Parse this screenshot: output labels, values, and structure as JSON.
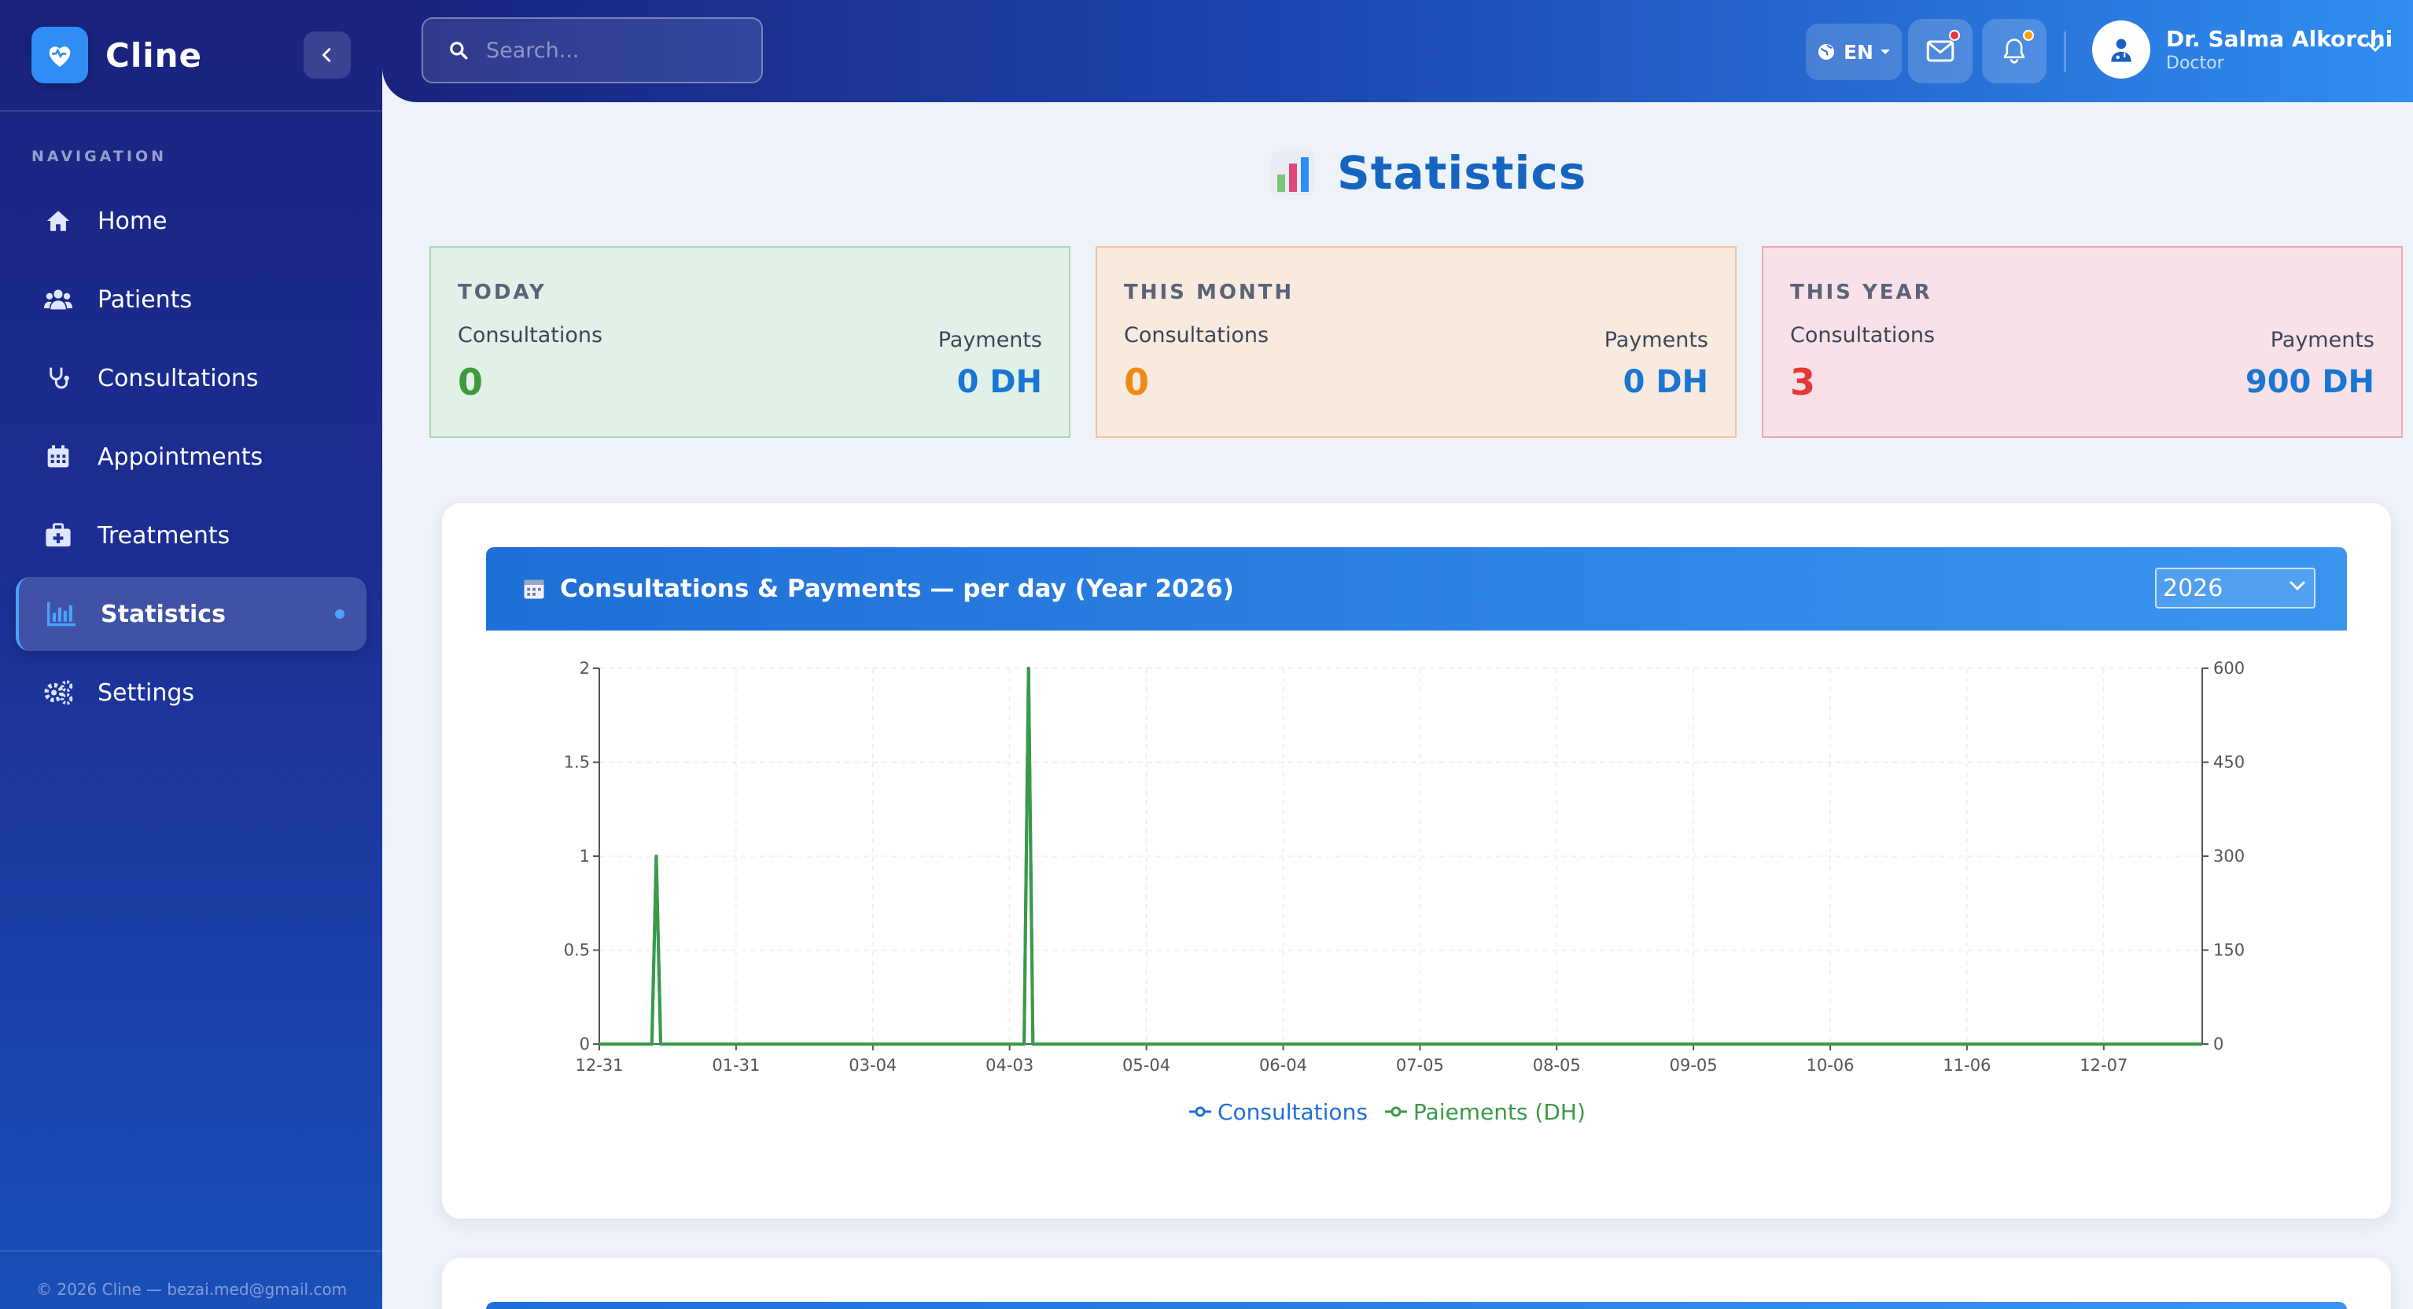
{
  "app": {
    "name": "Cline"
  },
  "sidebar": {
    "heading": "NAVIGATION",
    "items": [
      {
        "label": "Home",
        "icon": "home-icon"
      },
      {
        "label": "Patients",
        "icon": "users-icon"
      },
      {
        "label": "Consultations",
        "icon": "stethoscope-icon"
      },
      {
        "label": "Appointments",
        "icon": "calendar-icon"
      },
      {
        "label": "Treatments",
        "icon": "medkit-icon"
      },
      {
        "label": "Statistics",
        "icon": "bar-chart-icon",
        "active": true
      },
      {
        "label": "Settings",
        "icon": "gears-icon"
      }
    ],
    "footer": "© 2026 Cline — bezai.med@gmail.com"
  },
  "topbar": {
    "search_placeholder": "Search...",
    "language": "EN",
    "user": {
      "name": "Dr. Salma Alkorchi",
      "role": "Doctor"
    }
  },
  "page": {
    "title": "Statistics",
    "title_icon": "bar-chart-emoji-icon"
  },
  "cards": [
    {
      "period": "TODAY",
      "consultations_label": "Consultations",
      "consultations": "0",
      "payments_label": "Payments",
      "payments": "0 DH",
      "bg": "#e1f1e8",
      "border": "#a9d6b6",
      "value_color": "#3d9b3d"
    },
    {
      "period": "THIS MONTH",
      "consultations_label": "Consultations",
      "consultations": "0",
      "payments_label": "Payments",
      "payments": "0 DH",
      "bg": "#f8eadf",
      "border": "#f2c29c",
      "value_color": "#f08a16"
    },
    {
      "period": "THIS YEAR",
      "consultations_label": "Consultations",
      "consultations": "3",
      "payments_label": "Payments",
      "payments": "900 DH",
      "bg": "#f8e1e7",
      "border": "#eba6b6",
      "value_color": "#e53935"
    }
  ],
  "chart_panel": {
    "title": "Consultations & Payments — per day (Year 2026)",
    "selected_year": "2026"
  },
  "colors": {
    "accent": "#1976d2",
    "consultations": "#1e6fd6",
    "payments": "#3a9a46"
  },
  "chart_data": {
    "type": "line",
    "x_tick_labels": [
      "12-31",
      "01-31",
      "03-04",
      "04-03",
      "05-04",
      "06-04",
      "07-05",
      "08-05",
      "09-05",
      "10-06",
      "11-06",
      "12-07"
    ],
    "y_left": {
      "ticks": [
        "0",
        "0.5",
        "1",
        "1.5",
        "2"
      ],
      "range": [
        0,
        2
      ]
    },
    "y_right": {
      "ticks": [
        "0",
        "150",
        "300",
        "450",
        "600"
      ],
      "range": [
        0,
        600
      ]
    },
    "x_range_days": [
      0,
      366
    ],
    "grid": true,
    "legend_position": "bottom",
    "series": [
      {
        "name": "Consultations",
        "axis": "left",
        "color": "#1e6fd6",
        "points": [
          {
            "x": 13,
            "y": 1
          },
          {
            "x": 98,
            "y": 2
          }
        ]
      },
      {
        "name": "Paiements (DH)",
        "axis": "right",
        "color": "#3a9a46",
        "points": [
          {
            "x": 13,
            "y": 300
          },
          {
            "x": 98,
            "y": 600
          }
        ]
      }
    ]
  }
}
